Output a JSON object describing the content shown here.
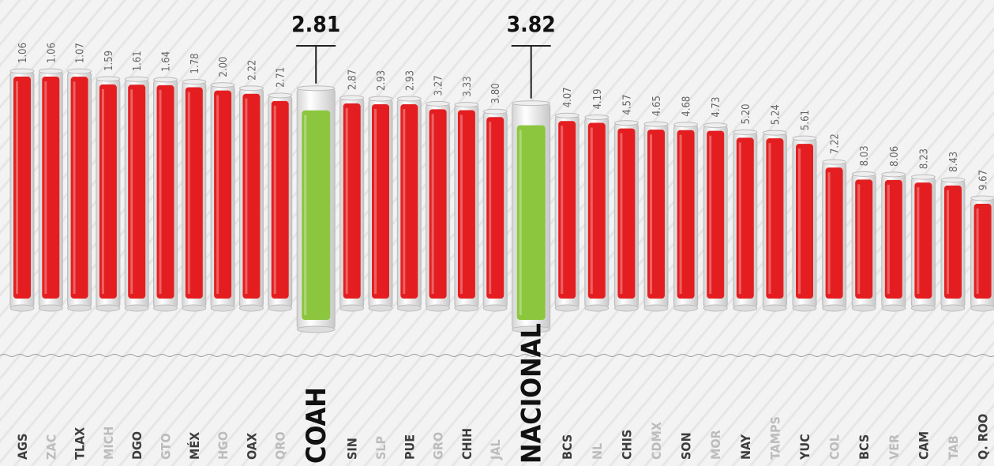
{
  "chart_data": {
    "type": "bar",
    "categories": [
      "AGS",
      "ZAC",
      "TLAX",
      "MICH",
      "DGO",
      "GTO",
      "MÉX",
      "HGO",
      "OAX",
      "QRO",
      "COAH",
      "SIN",
      "SLP",
      "PUE",
      "GRO",
      "CHIH",
      "JAL",
      "NACIONAL",
      "BCS",
      "NL",
      "CHIS",
      "CDMX",
      "SON",
      "MOR",
      "NAY",
      "TAMPS",
      "YUC",
      "COL",
      "BCS",
      "VER",
      "CAM",
      "TAB",
      "Q. ROO"
    ],
    "values": [
      1.06,
      1.06,
      1.07,
      1.59,
      1.61,
      1.64,
      1.78,
      2.0,
      2.22,
      2.71,
      2.81,
      2.87,
      2.93,
      2.93,
      3.27,
      3.33,
      3.8,
      3.82,
      4.07,
      4.19,
      4.57,
      4.65,
      4.68,
      4.73,
      5.2,
      5.24,
      5.61,
      7.22,
      8.03,
      8.06,
      8.23,
      8.43,
      9.67
    ],
    "value_labels": [
      "1.06",
      "1.06",
      "1.07",
      "1.59",
      "1.61",
      "1.64",
      "1.78",
      "2.00",
      "2.22",
      "2.71",
      "2.81",
      "2.87",
      "2.93",
      "2.93",
      "3.27",
      "3.33",
      "3.80",
      "3.82",
      "4.07",
      "4.19",
      "4.57",
      "4.65",
      "4.68",
      "4.73",
      "5.20",
      "5.24",
      "5.61",
      "7.22",
      "8.03",
      "8.06",
      "8.23",
      "8.43",
      "9.67"
    ],
    "colors": [
      "#e41e20",
      "#e41e20",
      "#e41e20",
      "#e41e20",
      "#e41e20",
      "#e41e20",
      "#e41e20",
      "#e41e20",
      "#e41e20",
      "#e41e20",
      "#8cc63f",
      "#e41e20",
      "#e41e20",
      "#e41e20",
      "#e41e20",
      "#e41e20",
      "#e41e20",
      "#8cc63f",
      "#e41e20",
      "#e41e20",
      "#e41e20",
      "#e41e20",
      "#e41e20",
      "#e41e20",
      "#e41e20",
      "#e41e20",
      "#e41e20",
      "#e41e20",
      "#e41e20",
      "#e41e20",
      "#e41e20",
      "#e41e20",
      "#e41e20"
    ]
  }
}
